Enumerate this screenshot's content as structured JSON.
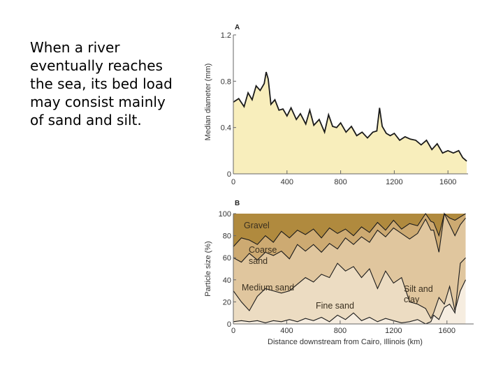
{
  "slide": {
    "text": "When a river eventually reaches the sea, its bed load may consist mainly of sand and silt."
  },
  "colors": {
    "panelA_fill": "#f8eebc",
    "gravel": "#b08a3e",
    "coarse_sand": "#cdaa72",
    "medium_sand": "#e0c69e",
    "fine_sand": "#ecdcc2",
    "silt_clay": "#f6ede0",
    "line": "#1a1a1a"
  },
  "chart_data": [
    {
      "type": "area",
      "panel_label": "A",
      "title": "",
      "xlabel": "",
      "ylabel": "Median diameter (mm)",
      "xlim": [
        0,
        1750
      ],
      "ylim": [
        0,
        1.2
      ],
      "x_ticks": [
        0,
        400,
        800,
        1200,
        1600
      ],
      "y_ticks": [
        0,
        0.4,
        0.8,
        1.2
      ],
      "series": [
        {
          "x": [
            0,
            40,
            80,
            110,
            140,
            170,
            200,
            230,
            245,
            260,
            280,
            310,
            340,
            370,
            400,
            430,
            470,
            500,
            540,
            570,
            600,
            640,
            680,
            710,
            740,
            770,
            800,
            840,
            880,
            920,
            960,
            1000,
            1040,
            1070,
            1090,
            1110,
            1140,
            1170,
            1200,
            1240,
            1280,
            1320,
            1360,
            1400,
            1440,
            1480,
            1520,
            1560,
            1600,
            1640,
            1680,
            1710,
            1740
          ],
          "values": [
            0.62,
            0.65,
            0.58,
            0.7,
            0.64,
            0.76,
            0.72,
            0.78,
            0.88,
            0.82,
            0.6,
            0.64,
            0.55,
            0.56,
            0.5,
            0.57,
            0.47,
            0.52,
            0.43,
            0.55,
            0.42,
            0.47,
            0.36,
            0.51,
            0.41,
            0.4,
            0.44,
            0.36,
            0.41,
            0.33,
            0.36,
            0.31,
            0.36,
            0.37,
            0.57,
            0.41,
            0.35,
            0.33,
            0.35,
            0.29,
            0.32,
            0.3,
            0.29,
            0.25,
            0.29,
            0.21,
            0.26,
            0.18,
            0.2,
            0.18,
            0.2,
            0.14,
            0.11
          ]
        }
      ]
    },
    {
      "type": "area",
      "panel_label": "B",
      "title": "",
      "xlabel": "Distance downstream from Cairo, Illinois (km)",
      "ylabel": "Particle size (%)",
      "xlim": [
        0,
        1800
      ],
      "ylim": [
        0,
        100
      ],
      "x_ticks": [
        0,
        400,
        800,
        1200,
        1600
      ],
      "y_ticks": [
        0,
        20,
        40,
        60,
        80,
        100
      ],
      "x": [
        0,
        60,
        120,
        180,
        240,
        300,
        360,
        420,
        480,
        540,
        600,
        660,
        720,
        780,
        840,
        900,
        960,
        1020,
        1080,
        1140,
        1200,
        1260,
        1320,
        1380,
        1440,
        1480,
        1500,
        1540,
        1580,
        1620,
        1660,
        1700,
        1740
      ],
      "boundaries": [
        {
          "name": "Silt and clay",
          "values": [
            2,
            3,
            2,
            3,
            1,
            3,
            2,
            4,
            2,
            5,
            3,
            6,
            2,
            8,
            4,
            10,
            3,
            6,
            2,
            5,
            3,
            1,
            2,
            4,
            0,
            2,
            8,
            4,
            15,
            18,
            10,
            55,
            60
          ]
        },
        {
          "name": "Fine sand",
          "values": [
            30,
            20,
            12,
            25,
            32,
            30,
            28,
            30,
            36,
            42,
            38,
            45,
            42,
            55,
            48,
            52,
            42,
            50,
            32,
            48,
            37,
            42,
            20,
            18,
            14,
            5,
            10,
            24,
            18,
            34,
            12,
            30,
            40
          ]
        },
        {
          "name": "Medium sand",
          "values": [
            60,
            56,
            64,
            58,
            65,
            62,
            66,
            59,
            72,
            66,
            72,
            65,
            73,
            68,
            78,
            72,
            79,
            74,
            85,
            79,
            87,
            82,
            77,
            82,
            95,
            85,
            85,
            65,
            100,
            90,
            80,
            90,
            96
          ]
        },
        {
          "name": "Coarse sand",
          "values": [
            70,
            78,
            76,
            72,
            80,
            74,
            84,
            78,
            85,
            81,
            86,
            78,
            87,
            82,
            86,
            80,
            88,
            83,
            92,
            85,
            94,
            86,
            91,
            89,
            100,
            93,
            92,
            80,
            100,
            96,
            94,
            97,
            100
          ]
        },
        {
          "name": "Gravel",
          "values": [
            100,
            100,
            100,
            100,
            100,
            100,
            100,
            100,
            100,
            100,
            100,
            100,
            100,
            100,
            100,
            100,
            100,
            100,
            100,
            100,
            100,
            100,
            100,
            100,
            100,
            100,
            100,
            100,
            100,
            100,
            100,
            100,
            100
          ]
        }
      ],
      "region_labels": [
        {
          "text": "Gravel"
        },
        {
          "text": "Coarse"
        },
        {
          "text": "sand"
        },
        {
          "text": "Medium sand"
        },
        {
          "text": "Fine sand"
        },
        {
          "text": "Silt and"
        },
        {
          "text": "clay"
        }
      ]
    }
  ]
}
